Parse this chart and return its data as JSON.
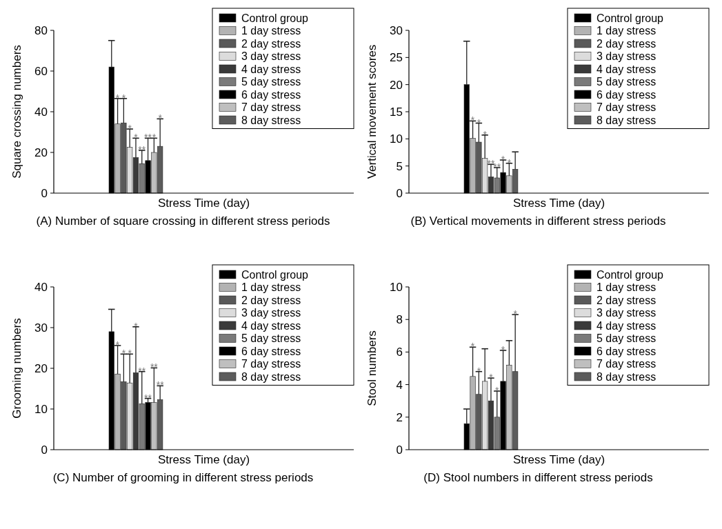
{
  "chart_data": [
    {
      "type": "bar",
      "title": "(A) Number of square crossing in different stress periods",
      "xlabel": "Stress Time (day)",
      "ylabel": "Square crossing numbers",
      "categories": [
        null
      ],
      "ylim": [
        0,
        80
      ],
      "yticks": [
        0,
        20,
        40,
        60,
        80
      ],
      "legend": "top right",
      "grid": false,
      "series": [
        {
          "name": "Control group",
          "color": "#000000",
          "values": [
            62
          ],
          "errors": [
            [
              62,
              75
            ]
          ]
        },
        {
          "name": "1 day stress",
          "color": "#b3b3b3",
          "values": [
            34
          ],
          "errors": [
            [
              34,
              46.5
            ]
          ]
        },
        {
          "name": "2 day stress",
          "color": "#595959",
          "values": [
            34.5
          ],
          "errors": [
            [
              34.5,
              46.5
            ]
          ]
        },
        {
          "name": "3 day stress",
          "color": "#dcdcdc",
          "values": [
            22.5
          ],
          "errors": [
            [
              22.5,
              31.5
            ]
          ]
        },
        {
          "name": "4 day stress",
          "color": "#3a3a3a",
          "values": [
            17.5
          ],
          "errors": [
            [
              17.5,
              27
            ]
          ]
        },
        {
          "name": "5 day stress",
          "color": "#7a7a7a",
          "values": [
            14.5
          ],
          "errors": [
            [
              14.5,
              21
            ]
          ]
        },
        {
          "name": "6 day stress",
          "color": "#000000",
          "values": [
            16
          ],
          "errors": [
            [
              16,
              27
            ]
          ]
        },
        {
          "name": "7 day stress",
          "color": "#bfbfbf",
          "values": [
            20
          ],
          "errors": [
            [
              20,
              27
            ]
          ]
        },
        {
          "name": "8 day stress",
          "color": "#5c5c5c",
          "values": [
            23
          ],
          "errors": [
            [
              23,
              36.5
            ]
          ]
        }
      ],
      "annotations": [
        {
          "text": "*",
          "y": 46.5
        },
        {
          "text": "*",
          "y": 46.5
        },
        {
          "text": "*",
          "y": 31.5
        },
        {
          "text": "*",
          "y": 27
        },
        {
          "text": "**",
          "y": 21
        },
        {
          "text": "**",
          "y": 27
        },
        {
          "text": "*",
          "y": 27
        },
        {
          "text": "*",
          "y": 36.5
        }
      ]
    },
    {
      "type": "bar",
      "title": "(B) Vertical movements in different stress periods",
      "xlabel": "Stress Time (day)",
      "ylabel": "Vertical movement scores",
      "categories": [
        null
      ],
      "ylim": [
        0,
        30
      ],
      "yticks": [
        0,
        5,
        10,
        15,
        20,
        25,
        30
      ],
      "legend": "top right",
      "grid": false,
      "series": [
        {
          "name": "Control group",
          "color": "#000000",
          "values": [
            20
          ],
          "errors": [
            [
              20,
              28
            ]
          ]
        },
        {
          "name": "1 day stress",
          "color": "#b3b3b3",
          "values": [
            10.1
          ],
          "errors": [
            [
              10.1,
              13.3
            ]
          ]
        },
        {
          "name": "2 day stress",
          "color": "#595959",
          "values": [
            9.4
          ],
          "errors": [
            [
              9.4,
              12.9
            ]
          ]
        },
        {
          "name": "3 day stress",
          "color": "#dcdcdc",
          "values": [
            6.4
          ],
          "errors": [
            [
              6.4,
              10.7
            ]
          ]
        },
        {
          "name": "4 day stress",
          "color": "#3a3a3a",
          "values": [
            3
          ],
          "errors": [
            [
              3,
              5.3
            ]
          ]
        },
        {
          "name": "5 day stress",
          "color": "#7a7a7a",
          "values": [
            2.8
          ],
          "errors": [
            [
              2.8,
              4.7
            ]
          ]
        },
        {
          "name": "6 day stress",
          "color": "#000000",
          "values": [
            3.8
          ],
          "errors": [
            [
              3.8,
              6.1
            ]
          ]
        },
        {
          "name": "7 day stress",
          "color": "#bfbfbf",
          "values": [
            3.2
          ],
          "errors": [
            [
              3.2,
              5.5
            ]
          ]
        },
        {
          "name": "8 day stress",
          "color": "#5c5c5c",
          "values": [
            4.4
          ],
          "errors": [
            [
              4.4,
              7.6
            ]
          ]
        }
      ],
      "annotations": [
        {
          "text": "*",
          "y": 13.3
        },
        {
          "text": "*",
          "y": 12.9
        },
        {
          "text": "*",
          "y": 10.7
        },
        {
          "text": "**",
          "y": 5.3
        },
        {
          "text": "**",
          "y": 4.7
        },
        {
          "text": "*",
          "y": 6.1
        },
        {
          "text": "*",
          "y": 5.5
        }
      ]
    },
    {
      "type": "bar",
      "title": "(C) Number of grooming in different stress periods",
      "xlabel": "Stress Time (day)",
      "ylabel": "Grooming numbers",
      "categories": [
        null
      ],
      "ylim": [
        0,
        40
      ],
      "yticks": [
        0,
        10,
        20,
        30,
        40
      ],
      "legend": "top right",
      "grid": false,
      "series": [
        {
          "name": "Control group",
          "color": "#000000",
          "values": [
            29
          ],
          "errors": [
            [
              29,
              34.5
            ]
          ]
        },
        {
          "name": "1 day stress",
          "color": "#b3b3b3",
          "values": [
            18.6
          ],
          "errors": [
            [
              18.6,
              25.6
            ]
          ]
        },
        {
          "name": "2 day stress",
          "color": "#595959",
          "values": [
            16.7
          ],
          "errors": [
            [
              16.7,
              23.5
            ]
          ]
        },
        {
          "name": "3 day stress",
          "color": "#dcdcdc",
          "values": [
            16.4
          ],
          "errors": [
            [
              16.4,
              23.5
            ]
          ]
        },
        {
          "name": "4 day stress",
          "color": "#3a3a3a",
          "values": [
            18.9
          ],
          "errors": [
            [
              18.9,
              30.2
            ]
          ]
        },
        {
          "name": "5 day stress",
          "color": "#7a7a7a",
          "values": [
            11.3
          ],
          "errors": [
            [
              11.3,
              19.2
            ]
          ]
        },
        {
          "name": "6 day stress",
          "color": "#000000",
          "values": [
            11.6
          ],
          "errors": [
            [
              11.6,
              12.6
            ]
          ]
        },
        {
          "name": "7 day stress",
          "color": "#bfbfbf",
          "values": [
            11.6
          ],
          "errors": [
            [
              11.6,
              20.1
            ]
          ]
        },
        {
          "name": "8 day stress",
          "color": "#5c5c5c",
          "values": [
            12.3
          ],
          "errors": [
            [
              12.3,
              15.7
            ]
          ]
        }
      ],
      "annotations": [
        {
          "text": "*",
          "y": 25.6
        },
        {
          "text": "*",
          "y": 23.5
        },
        {
          "text": "*",
          "y": 23.5
        },
        {
          "text": "*",
          "y": 30.2
        },
        {
          "text": "**",
          "y": 19.2
        },
        {
          "text": "**",
          "y": 12.6
        },
        {
          "text": "**",
          "y": 20.1
        },
        {
          "text": "**",
          "y": 15.7
        }
      ]
    },
    {
      "type": "bar",
      "title": "(D) Stool numbers in different stress periods",
      "xlabel": "Stress Time (day)",
      "ylabel": "Stool numbers",
      "categories": [
        null
      ],
      "ylim": [
        0,
        10
      ],
      "yticks": [
        0,
        2,
        4,
        6,
        8,
        10
      ],
      "legend": "top right",
      "grid": false,
      "series": [
        {
          "name": "Control group",
          "color": "#000000",
          "values": [
            1.6
          ],
          "errors": [
            [
              1.6,
              2.5
            ]
          ]
        },
        {
          "name": "1 day stress",
          "color": "#b3b3b3",
          "values": [
            4.5
          ],
          "errors": [
            [
              4.5,
              6.3
            ]
          ]
        },
        {
          "name": "2 day stress",
          "color": "#595959",
          "values": [
            3.4
          ],
          "errors": [
            [
              3.4,
              4.8
            ]
          ]
        },
        {
          "name": "3 day stress",
          "color": "#dcdcdc",
          "values": [
            4.2
          ],
          "errors": [
            [
              4.2,
              6.2
            ]
          ]
        },
        {
          "name": "4 day stress",
          "color": "#3a3a3a",
          "values": [
            3
          ],
          "errors": [
            [
              3,
              4.4
            ]
          ]
        },
        {
          "name": "5 day stress",
          "color": "#7a7a7a",
          "values": [
            2
          ],
          "errors": [
            [
              2,
              3.6
            ]
          ]
        },
        {
          "name": "6 day stress",
          "color": "#000000",
          "values": [
            4.2
          ],
          "errors": [
            [
              4.2,
              6.1
            ]
          ]
        },
        {
          "name": "7 day stress",
          "color": "#bfbfbf",
          "values": [
            5.2
          ],
          "errors": [
            [
              5.2,
              6.7
            ]
          ]
        },
        {
          "name": "8 day stress",
          "color": "#5c5c5c",
          "values": [
            4.8
          ],
          "errors": [
            [
              4.8,
              8.3
            ]
          ]
        }
      ],
      "annotations": [
        {
          "text": "*",
          "y": 6.3
        },
        {
          "text": "*",
          "y": 4.8
        },
        {
          "text": "*",
          "y": 4.4
        },
        {
          "text": "*",
          "y": 3.6
        },
        {
          "text": "*",
          "y": 6.1
        },
        {
          "text": "*",
          "y": 8.3
        }
      ]
    }
  ]
}
